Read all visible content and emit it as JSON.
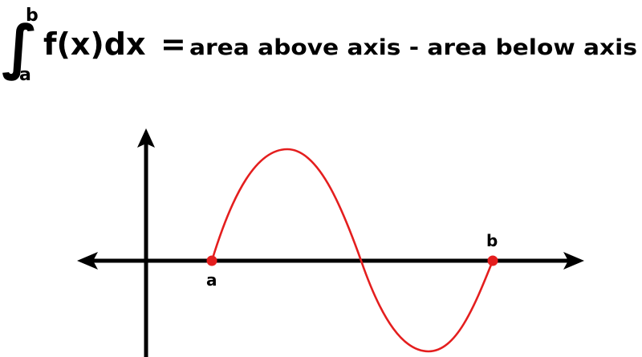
{
  "formula": {
    "integral_sign": "∫",
    "upper_limit": "b",
    "lower_limit": "a",
    "integrand": "f(x)dx",
    "equals": "=",
    "rhs": "area above axis - area below axis"
  },
  "graph": {
    "point_a_label": "a",
    "point_b_label": "b",
    "curve_color": "#e41e1e",
    "point_color": "#e41e1e",
    "axis_color": "#000000"
  }
}
